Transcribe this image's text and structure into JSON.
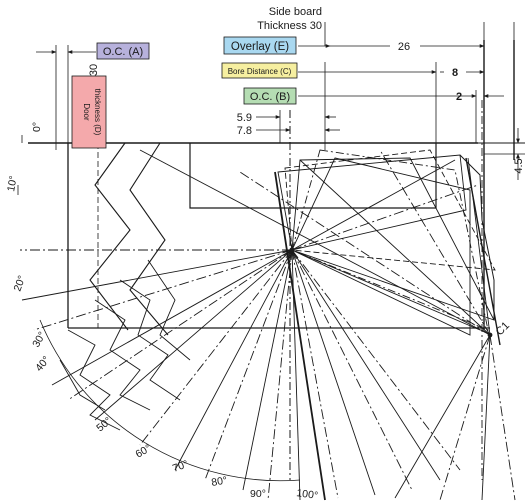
{
  "labels": {
    "side_board": "Side board",
    "thickness_30": "Thickness 30",
    "oc_a": "O.C. (A)",
    "overlay_e": "Overlay (E)",
    "bore_distance_c": "Bore Distance (C)",
    "oc_b": "O.C. (B)",
    "door_thickness_line1": "Door",
    "door_thickness_line2": "thickness (D)",
    "door_thickness_value": "30",
    "c1": "C1"
  },
  "dimensions": {
    "overlay": "26",
    "bore_distance": "8",
    "oc_b": "2",
    "d_5_9": "5.9",
    "d_7_8": "7.8",
    "d_4_5": "4.5"
  },
  "angles": [
    "0°",
    "10°",
    "20°",
    "30°",
    "40°",
    "50°",
    "60°",
    "70°",
    "80°",
    "90°",
    "100°"
  ],
  "colors": {
    "oc_a_fill": "#b7b1dc",
    "overlay_fill": "#a9d8f0",
    "bore_fill": "#f6efa0",
    "oc_b_fill": "#b5ddb3",
    "door_fill": "#f4a9ab",
    "line": "#1a1a1a"
  }
}
